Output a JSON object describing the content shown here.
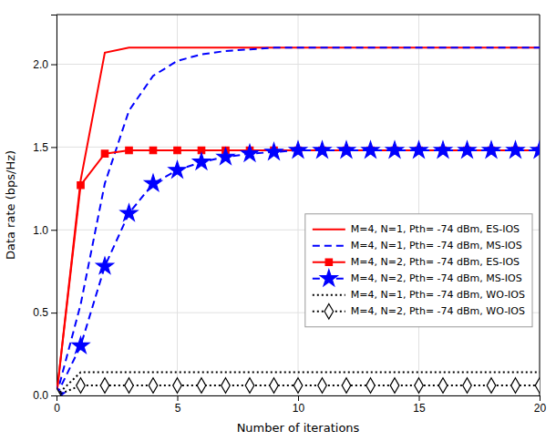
{
  "chart_data": {
    "type": "line",
    "x_label": "Number of iterations",
    "y_label": "Data rate (bps/Hz)",
    "xlim": [
      0,
      20
    ],
    "ylim": [
      0,
      2.3
    ],
    "xticks": [
      0,
      5,
      10,
      15,
      20
    ],
    "yticks": [
      {
        "value": 0,
        "label": "0.0"
      },
      0.5,
      {
        "value": 1.0,
        "label": "1.0"
      },
      1.5,
      {
        "value": 2.0,
        "label": "2.0"
      }
    ],
    "grid": true,
    "legend": "bottom-right",
    "x": [
      0,
      1,
      2,
      3,
      4,
      5,
      6,
      7,
      8,
      9,
      10,
      11,
      12,
      13,
      14,
      15,
      16,
      17,
      18,
      19,
      20
    ],
    "series": [
      {
        "name": "M=4, N=1, Pth= -74 dBm, ES-IOS",
        "color": "#ff0000",
        "line_style": "solid",
        "values": [
          0.0,
          1.3,
          2.07,
          2.1,
          2.1,
          2.1,
          2.1,
          2.1,
          2.1,
          2.1,
          2.1,
          2.1,
          2.1,
          2.1,
          2.1,
          2.1,
          2.1,
          2.1,
          2.1,
          2.1,
          2.1
        ]
      },
      {
        "name": "M=4, N=1, Pth= -74 dBm, MS-IOS",
        "color": "#0000ff",
        "line_style": "dashed",
        "values": [
          0.0,
          0.55,
          1.28,
          1.72,
          1.93,
          2.02,
          2.06,
          2.08,
          2.09,
          2.1,
          2.1,
          2.1,
          2.1,
          2.1,
          2.1,
          2.1,
          2.1,
          2.1,
          2.1,
          2.1,
          2.1
        ]
      },
      {
        "name": "M=4, N=2, Pth= -74 dBm, ES-IOS",
        "color": "#ff0000",
        "line_style": "solid",
        "marker": "square",
        "values": [
          0.0,
          1.27,
          1.46,
          1.48,
          1.48,
          1.48,
          1.48,
          1.48,
          1.48,
          1.48,
          1.48,
          1.48,
          1.48,
          1.48,
          1.48,
          1.48,
          1.48,
          1.48,
          1.48,
          1.48,
          1.48
        ]
      },
      {
        "name": "M=4, N=2, Pth= -74 dBm, MS-IOS",
        "color": "#0000ff",
        "line_style": "dashed",
        "marker": "star",
        "values": [
          0.0,
          0.3,
          0.78,
          1.1,
          1.28,
          1.36,
          1.41,
          1.44,
          1.46,
          1.47,
          1.48,
          1.48,
          1.48,
          1.48,
          1.48,
          1.48,
          1.48,
          1.48,
          1.48,
          1.48,
          1.48
        ]
      },
      {
        "name": "M=4, N=1, Pth= -74 dBm, WO-IOS",
        "color": "#000000",
        "line_style": "dotted",
        "values": [
          0.0,
          0.14,
          0.14,
          0.14,
          0.14,
          0.14,
          0.14,
          0.14,
          0.14,
          0.14,
          0.14,
          0.14,
          0.14,
          0.14,
          0.14,
          0.14,
          0.14,
          0.14,
          0.14,
          0.14,
          0.14
        ]
      },
      {
        "name": "M=4, N=2, Pth= -74 dBm, WO-IOS",
        "color": "#000000",
        "line_style": "dotted",
        "marker": "diamond-open",
        "values": [
          0.0,
          0.06,
          0.06,
          0.06,
          0.06,
          0.06,
          0.06,
          0.06,
          0.06,
          0.06,
          0.06,
          0.06,
          0.06,
          0.06,
          0.06,
          0.06,
          0.06,
          0.06,
          0.06,
          0.06,
          0.06
        ]
      }
    ]
  }
}
